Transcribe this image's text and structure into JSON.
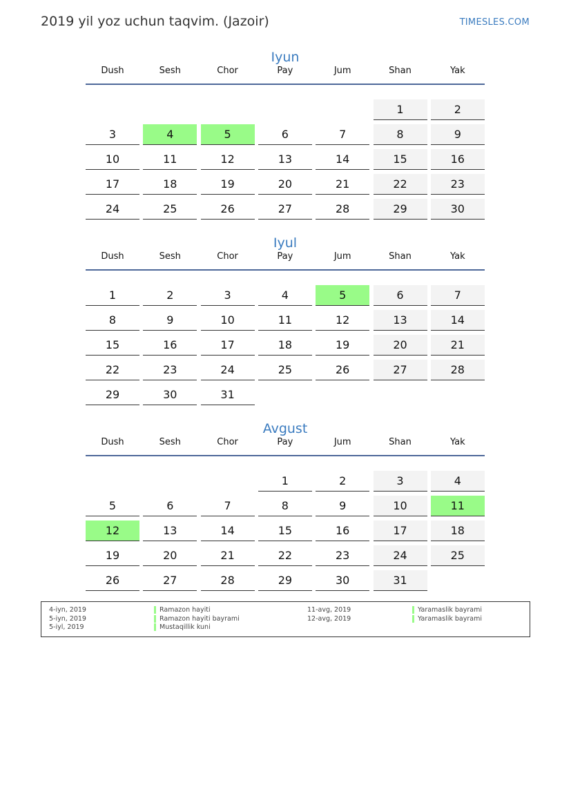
{
  "header": {
    "title": "2019 yil yoz uchun taqvim. (Jazoir)",
    "site": "TIMESLES.COM"
  },
  "weekdays": [
    "Dush",
    "Sesh",
    "Chor",
    "Pay",
    "Jum",
    "Shan",
    "Yak"
  ],
  "colors": {
    "accent": "#3a7bbf",
    "holiday": "#99fb88",
    "weekend": "#f3f3f3",
    "rule": "#4d6799"
  },
  "months": [
    {
      "name": "Iyun",
      "offset": 5,
      "days": 30,
      "holidays": [
        4,
        5
      ]
    },
    {
      "name": "Iyul",
      "offset": 0,
      "days": 31,
      "holidays": [
        5
      ]
    },
    {
      "name": "Avgust",
      "offset": 3,
      "days": 31,
      "holidays": [
        11,
        12
      ]
    }
  ],
  "legend": [
    {
      "date": "4-iyn, 2019",
      "name": "Ramazon hayiti"
    },
    {
      "date": "5-iyn, 2019",
      "name": "Ramazon hayiti bayrami"
    },
    {
      "date": "5-iyl, 2019",
      "name": "Mustaqillik kuni"
    },
    {
      "date": "11-avg, 2019",
      "name": "Yaramaslik bayrami"
    },
    {
      "date": "12-avg, 2019",
      "name": "Yaramaslik bayrami"
    }
  ]
}
